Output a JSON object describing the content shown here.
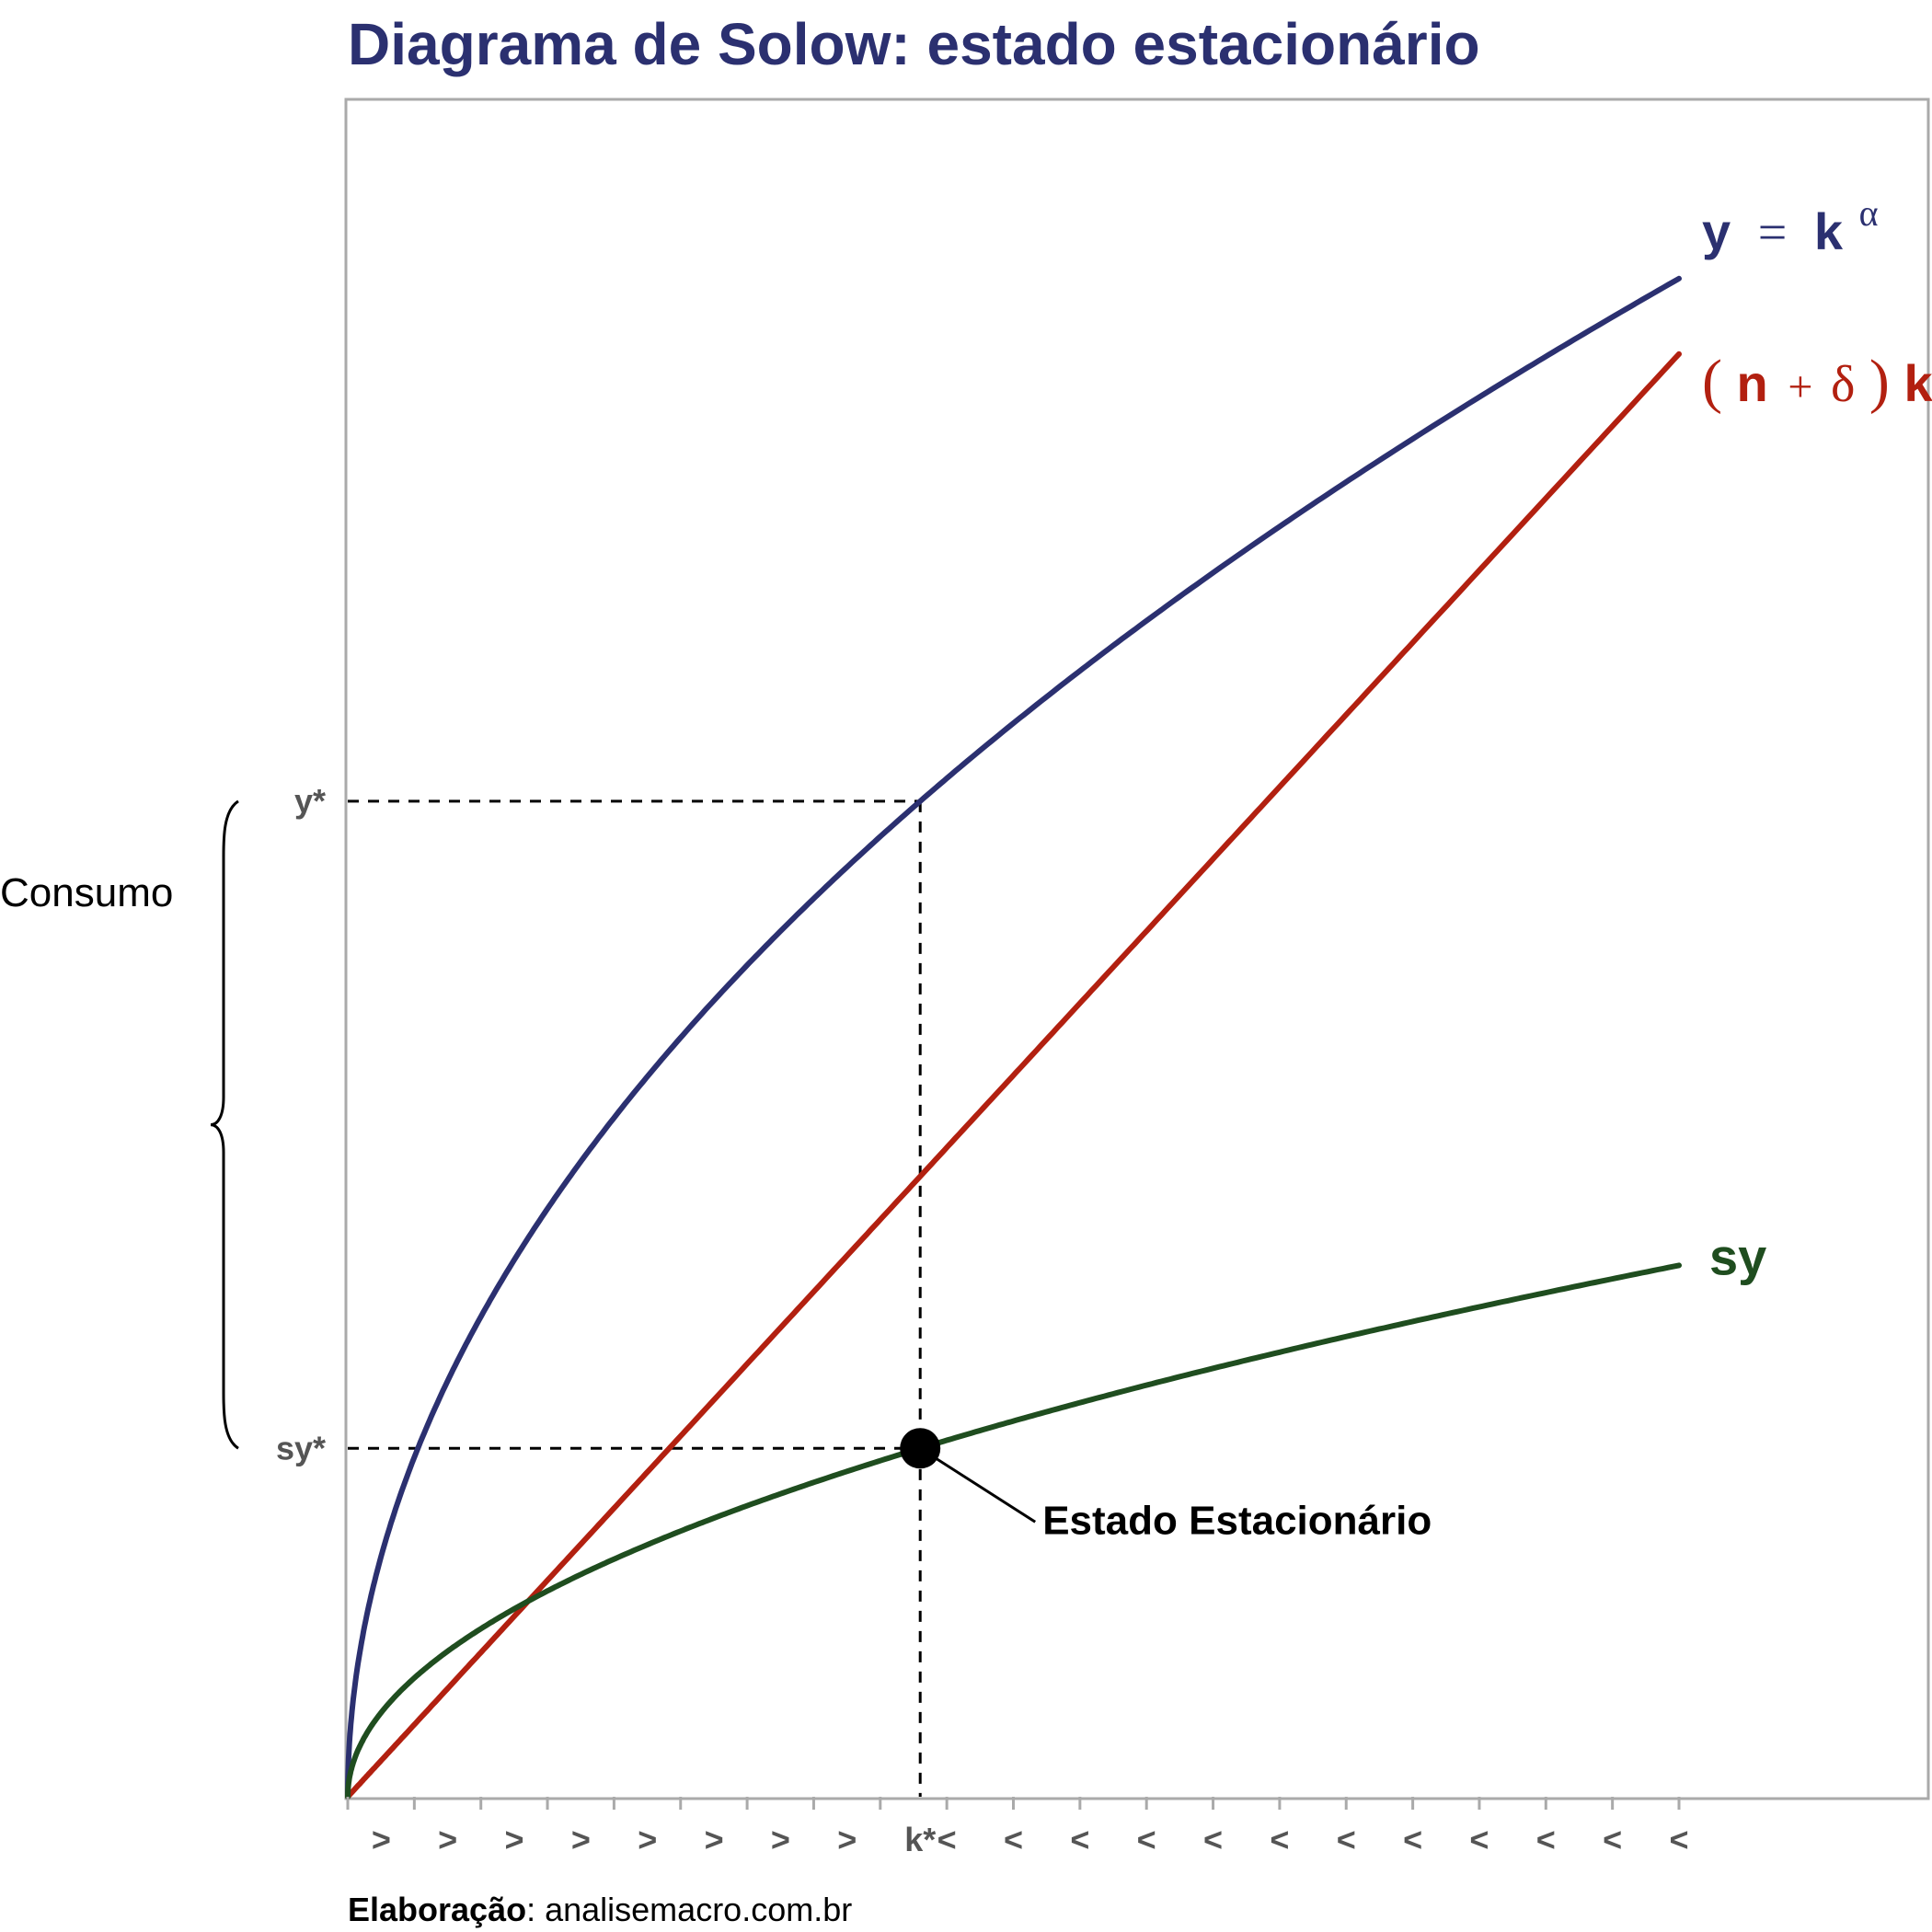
{
  "chart_data": {
    "type": "line",
    "title": "Diagrama de Solow: estado estacionário",
    "xlabel": "",
    "ylabel": "",
    "grid": false,
    "x_domain": [
      0,
      20
    ],
    "y_domain": [
      0,
      5
    ],
    "alpha": 0.5,
    "savings_rate": 0.35,
    "k_star": 8.6,
    "series": [
      {
        "name": "y = k^α",
        "color": "#2b3070",
        "x": [
          0,
          0.2,
          0.5,
          1,
          2,
          3,
          4,
          5,
          6,
          7,
          8,
          8.6,
          9,
          10,
          11,
          12,
          13,
          14,
          15,
          16,
          17,
          18,
          19,
          20
        ],
        "y": [
          0,
          0.45,
          0.71,
          1.0,
          1.41,
          1.73,
          2.0,
          2.24,
          2.45,
          2.65,
          2.83,
          2.93,
          3.0,
          3.16,
          3.32,
          3.46,
          3.61,
          3.74,
          3.87,
          4.0,
          4.12,
          4.24,
          4.36,
          4.47
        ]
      },
      {
        "name": "(n + δ)k",
        "color": "#b22010",
        "x": [
          0,
          20
        ],
        "y": [
          0,
          4.25
        ]
      },
      {
        "name": "sy",
        "color": "#1f4d1f",
        "x": [
          0,
          0.2,
          0.5,
          1,
          2,
          3,
          4,
          5,
          6,
          7,
          8,
          8.6,
          9,
          10,
          11,
          12,
          13,
          14,
          15,
          16,
          17,
          18,
          19,
          20
        ],
        "y": [
          0,
          0.68,
          0.88,
          1.03,
          1.25,
          1.41,
          1.54,
          1.64,
          1.73,
          1.81,
          1.88,
          1.83,
          1.87,
          1.93,
          1.98,
          2.03,
          2.08,
          2.12,
          2.16,
          2.2,
          2.24,
          2.28,
          2.31,
          2.34
        ]
      }
    ],
    "x_tick_glyphs": [
      ">",
      ">",
      ">",
      ">",
      ">",
      ">",
      ">",
      ">",
      "<",
      "<",
      "<",
      "<",
      "<",
      "<",
      "<",
      "<",
      "<",
      "<",
      "<",
      "<"
    ],
    "steady_state_label": "k*",
    "y_marks": {
      "y_star": "y*",
      "sy_star": "sy*"
    },
    "annotation": "Estado Estacionário",
    "brace_label": "Consumo",
    "caption_bold": "Elaboração",
    "caption_rest": ": analisemacro.com.br",
    "label_y_eq": "y",
    "label_eq_sign": "=",
    "label_k": "k",
    "label_alpha": "α",
    "label_open_paren": "(",
    "label_n": "n",
    "label_plus": "+",
    "label_delta": "δ",
    "label_close_paren": ")",
    "label_k2": "k",
    "label_sy": "sy",
    "colors": {
      "title": "#2b3070",
      "output": "#2b3070",
      "depreciation": "#b22010",
      "investment": "#1f4d1f",
      "axis": "#aaaaaa"
    }
  }
}
